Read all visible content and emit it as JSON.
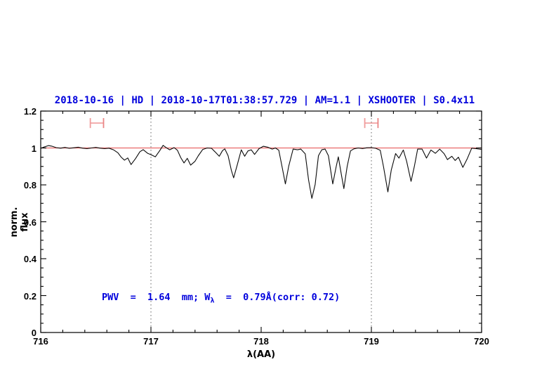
{
  "colors": {
    "title_blue": "#0000dd",
    "annotation_blue": "#0000dd",
    "continuum_red": "#e86868",
    "marker_pink": "#f09c9c",
    "marker_cap_pink": "#ea8585",
    "dotted_gray": "#606060",
    "spectrum_black": "#0a0a0a",
    "axis_black": "#000000"
  },
  "chart_data": {
    "type": "line",
    "title": "2018-10-16 | HD | 2018-10-17T01:38:57.729 | AM=1.1 | XSHOOTER | S0.4x11",
    "xlabel": "λ(AA)",
    "ylabel": "norm. flux",
    "xlim": [
      716,
      720
    ],
    "ylim": [
      0,
      1.2
    ],
    "grid": "off",
    "legend": "none",
    "x_ticks": {
      "values": [
        716,
        717,
        718,
        719,
        720
      ],
      "labels": [
        "716",
        "717",
        "718",
        "719",
        "720"
      ],
      "minor_step": 0.2
    },
    "y_ticks": {
      "values": [
        0,
        0.2,
        0.4,
        0.6,
        0.8,
        1,
        1.2
      ],
      "labels": [
        "0",
        "0.2",
        "0.4",
        "0.6",
        "0.8",
        "1",
        "1.2"
      ],
      "minor_step": 0.05
    },
    "annotation": {
      "prefix": "PWV  =  1.64  mm; W",
      "sub": "λ",
      "suffix": "  =  0.79Å(corr: 0.72)"
    },
    "reference_lines": {
      "continuum_flux": 1.0,
      "vertical_dotted_x": [
        717,
        719
      ]
    },
    "range_markers": [
      {
        "x1": 716.45,
        "x2": 716.57,
        "y": 1.135,
        "cap_half_height": 0.027
      },
      {
        "x1": 718.94,
        "x2": 719.06,
        "y": 1.135,
        "cap_half_height": 0.027
      }
    ],
    "series": [
      {
        "name": "normalized telluric spectrum",
        "color": "#0a0a0a",
        "points": [
          [
            716.0,
            0.998
          ],
          [
            716.03,
            1.005
          ],
          [
            716.07,
            1.013
          ],
          [
            716.1,
            1.01
          ],
          [
            716.14,
            1.002
          ],
          [
            716.18,
            0.999
          ],
          [
            716.22,
            1.003
          ],
          [
            716.26,
            0.998
          ],
          [
            716.3,
            1.001
          ],
          [
            716.34,
            1.004
          ],
          [
            716.38,
            0.999
          ],
          [
            716.42,
            0.996
          ],
          [
            716.46,
            1.0
          ],
          [
            716.5,
            1.003
          ],
          [
            716.54,
            0.999
          ],
          [
            716.58,
            0.996
          ],
          [
            716.62,
            0.999
          ],
          [
            716.66,
            0.99
          ],
          [
            716.7,
            0.974
          ],
          [
            716.73,
            0.95
          ],
          [
            716.76,
            0.934
          ],
          [
            716.79,
            0.946
          ],
          [
            716.82,
            0.91
          ],
          [
            716.86,
            0.942
          ],
          [
            716.9,
            0.98
          ],
          [
            716.93,
            0.991
          ],
          [
            716.97,
            0.971
          ],
          [
            717.0,
            0.964
          ],
          [
            717.04,
            0.952
          ],
          [
            717.08,
            0.986
          ],
          [
            717.11,
            1.014
          ],
          [
            717.14,
            1.001
          ],
          [
            717.17,
            0.99
          ],
          [
            717.21,
            1.002
          ],
          [
            717.24,
            0.988
          ],
          [
            717.27,
            0.948
          ],
          [
            717.3,
            0.919
          ],
          [
            717.33,
            0.944
          ],
          [
            717.36,
            0.907
          ],
          [
            717.4,
            0.928
          ],
          [
            717.43,
            0.958
          ],
          [
            717.47,
            0.992
          ],
          [
            717.51,
            1.0
          ],
          [
            717.55,
            0.998
          ],
          [
            717.58,
            0.98
          ],
          [
            717.62,
            0.955
          ],
          [
            717.65,
            0.986
          ],
          [
            717.67,
            0.995
          ],
          [
            717.7,
            0.958
          ],
          [
            717.73,
            0.878
          ],
          [
            717.75,
            0.838
          ],
          [
            717.78,
            0.902
          ],
          [
            717.82,
            0.99
          ],
          [
            717.85,
            0.955
          ],
          [
            717.88,
            0.984
          ],
          [
            717.91,
            0.99
          ],
          [
            717.94,
            0.965
          ],
          [
            717.98,
            0.996
          ],
          [
            718.02,
            1.009
          ],
          [
            718.06,
            1.004
          ],
          [
            718.1,
            0.994
          ],
          [
            718.13,
            1.0
          ],
          [
            718.16,
            0.988
          ],
          [
            718.19,
            0.898
          ],
          [
            718.22,
            0.805
          ],
          [
            718.25,
            0.902
          ],
          [
            718.29,
            0.994
          ],
          [
            718.33,
            0.99
          ],
          [
            718.36,
            0.994
          ],
          [
            718.4,
            0.968
          ],
          [
            718.43,
            0.828
          ],
          [
            718.46,
            0.727
          ],
          [
            718.49,
            0.802
          ],
          [
            718.52,
            0.958
          ],
          [
            718.55,
            0.99
          ],
          [
            718.58,
            0.994
          ],
          [
            718.61,
            0.958
          ],
          [
            718.65,
            0.805
          ],
          [
            718.68,
            0.898
          ],
          [
            718.7,
            0.952
          ],
          [
            718.73,
            0.848
          ],
          [
            718.75,
            0.78
          ],
          [
            718.78,
            0.9
          ],
          [
            718.81,
            0.984
          ],
          [
            718.84,
            0.995
          ],
          [
            718.88,
            1.0
          ],
          [
            718.92,
            0.997
          ],
          [
            718.96,
            1.001
          ],
          [
            719.0,
            1.002
          ],
          [
            719.04,
            0.998
          ],
          [
            719.08,
            0.988
          ],
          [
            719.11,
            0.898
          ],
          [
            719.15,
            0.762
          ],
          [
            719.18,
            0.88
          ],
          [
            719.22,
            0.97
          ],
          [
            719.25,
            0.945
          ],
          [
            719.29,
            0.989
          ],
          [
            719.32,
            0.928
          ],
          [
            719.36,
            0.819
          ],
          [
            719.39,
            0.9
          ],
          [
            719.42,
            0.994
          ],
          [
            719.46,
            0.994
          ],
          [
            719.5,
            0.945
          ],
          [
            719.54,
            0.989
          ],
          [
            719.58,
            0.971
          ],
          [
            719.62,
            0.994
          ],
          [
            719.66,
            0.969
          ],
          [
            719.69,
            0.937
          ],
          [
            719.73,
            0.955
          ],
          [
            719.76,
            0.932
          ],
          [
            719.79,
            0.95
          ],
          [
            719.83,
            0.895
          ],
          [
            719.87,
            0.942
          ],
          [
            719.91,
            0.999
          ],
          [
            719.95,
            0.996
          ],
          [
            720.0,
            0.992
          ]
        ]
      }
    ]
  }
}
